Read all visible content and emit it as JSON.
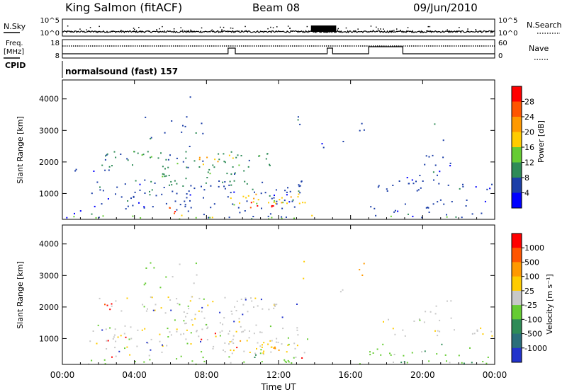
{
  "header": {
    "station": "King Salmon (fitACF)",
    "beam": "Beam 08",
    "date": "09/Jun/2010"
  },
  "left_labels": {
    "nsky": "N.Sky",
    "freq": "Freq.",
    "freq_unit": "[MHz]",
    "cpid": "CPID"
  },
  "right_labels": {
    "nsearch": "N.Search",
    "nave": "Nave"
  },
  "cpid_text": "normalsound (fast) 157",
  "chart_data": [
    {
      "type": "line",
      "name": "noise-panel",
      "left_ticks": [
        "10^5",
        "10^0"
      ],
      "right_ticks": [
        "10^5",
        "10^0"
      ]
    },
    {
      "type": "line",
      "name": "freq-nave-panel",
      "left_ticks": [
        18,
        8
      ],
      "right_ticks": [
        60,
        0
      ],
      "nave_steps": [
        {
          "x": [
            0.0,
            9.2
          ],
          "level": "low"
        },
        {
          "x": [
            9.2,
            9.6
          ],
          "level": "high"
        },
        {
          "x": [
            9.6,
            14.7
          ],
          "level": "low"
        },
        {
          "x": [
            14.7,
            15.0
          ],
          "level": "high"
        },
        {
          "x": [
            15.0,
            17.0
          ],
          "level": "low"
        },
        {
          "x": [
            17.0,
            18.9
          ],
          "level": "higher"
        },
        {
          "x": [
            18.9,
            24.0
          ],
          "level": "low"
        }
      ]
    },
    {
      "type": "heatmap",
      "name": "power",
      "xlim": [
        0,
        24
      ],
      "xticks": [
        "00:00",
        "04:00",
        "08:00",
        "12:00",
        "16:00",
        "20:00",
        "00:00"
      ],
      "xtick_values": [
        0,
        4,
        8,
        12,
        16,
        20,
        24
      ],
      "ylim": [
        180,
        4600
      ],
      "yticks": [
        1000,
        2000,
        3000,
        4000
      ],
      "ylabel": "Slant Range [km]",
      "colorbar_label": "Power [dB]",
      "colorbar_ticks": [
        4,
        8,
        12,
        16,
        20,
        24,
        28
      ],
      "colorbar_colors": [
        "#0000ff",
        "#1c3fa8",
        "#2e8b57",
        "#66cc33",
        "#ffcc00",
        "#ff9900",
        "#ff5500",
        "#ff0000"
      ],
      "regions": [
        {
          "t": [
            0.2,
            13.5
          ],
          "r": [
            250,
            500
          ],
          "level": 1,
          "density": 0.22
        },
        {
          "t": [
            1.5,
            13.6
          ],
          "r": [
            500,
            1450
          ],
          "level": 1,
          "density": 0.4
        },
        {
          "t": [
            5.5,
            10.5
          ],
          "r": [
            1200,
            1900
          ],
          "level": 2,
          "density": 0.45
        },
        {
          "t": [
            2.0,
            12.0
          ],
          "r": [
            1850,
            2350
          ],
          "level": 2,
          "density": 0.5
        },
        {
          "t": [
            0.5,
            3.0
          ],
          "r": [
            1650,
            1950
          ],
          "level": 1,
          "density": 0.3
        },
        {
          "t": [
            9.0,
            13.5
          ],
          "r": [
            600,
            1000
          ],
          "level": 4,
          "density": 0.65
        },
        {
          "t": [
            10.2,
            11.8
          ],
          "r": [
            550,
            800
          ],
          "level": 7,
          "density": 0.8
        },
        {
          "t": [
            5.8,
            6.8
          ],
          "r": [
            360,
            600
          ],
          "level": 6,
          "density": 0.7
        },
        {
          "t": [
            7.5,
            9.5
          ],
          "r": [
            1900,
            2250
          ],
          "level": 5,
          "density": 0.5
        },
        {
          "t": [
            4.5,
            7.8
          ],
          "r": [
            2500,
            3500
          ],
          "level": 1,
          "density": 0.18
        },
        {
          "t": [
            7.0,
            8.0
          ],
          "r": [
            3800,
            4200
          ],
          "level": 0,
          "density": 0.12
        },
        {
          "t": [
            14.3,
            15.6
          ],
          "r": [
            2300,
            2700
          ],
          "level": 1,
          "density": 0.28
        },
        {
          "t": [
            13.0,
            13.4
          ],
          "r": [
            2900,
            3600
          ],
          "level": 1,
          "density": 0.45
        },
        {
          "t": [
            16.4,
            16.8
          ],
          "r": [
            2950,
            3550
          ],
          "level": 1,
          "density": 0.6
        },
        {
          "t": [
            17.3,
            24.0
          ],
          "r": [
            1100,
            1350
          ],
          "level": 1,
          "density": 0.55
        },
        {
          "t": [
            17.3,
            21.0
          ],
          "r": [
            1400,
            1750
          ],
          "level": 1,
          "density": 0.3
        },
        {
          "t": [
            17.0,
            24.0
          ],
          "r": [
            250,
            850
          ],
          "level": 1,
          "density": 0.28
        },
        {
          "t": [
            19.5,
            22.0
          ],
          "r": [
            1600,
            2300
          ],
          "level": 1,
          "density": 0.22
        },
        {
          "t": [
            20.3,
            21.3
          ],
          "r": [
            2700,
            3300
          ],
          "level": 1,
          "density": 0.12
        },
        {
          "t": [
            0.2,
            24.0
          ],
          "r": [
            180,
            330
          ],
          "level": 3,
          "density": 0.3
        }
      ]
    },
    {
      "type": "heatmap",
      "name": "velocity",
      "xlim": [
        0,
        24
      ],
      "xticks": [
        "00:00",
        "04:00",
        "08:00",
        "12:00",
        "16:00",
        "20:00",
        "00:00"
      ],
      "xtick_values": [
        0,
        4,
        8,
        12,
        16,
        20,
        24
      ],
      "xlabel": "Time UT",
      "ylim": [
        180,
        4600
      ],
      "yticks": [
        1000,
        2000,
        3000,
        4000
      ],
      "ylabel": "Slant Range [km]",
      "colorbar_label": "Velocity [m s⁻¹]",
      "colorbar_ticks": [
        1000,
        500,
        100,
        25,
        -25,
        -100,
        -500,
        -1000
      ],
      "colorbar_colors": [
        "#2233cc",
        "#2a6e7a",
        "#2e8b57",
        "#66cc33",
        "#c8c8c8",
        "#ffcc00",
        "#ff9900",
        "#ff5500",
        "#ff0000"
      ],
      "regions": [
        {
          "t": [
            1.5,
            13.6
          ],
          "r": [
            500,
            1450
          ],
          "level": 4,
          "density": 0.4
        },
        {
          "t": [
            9.0,
            12.5
          ],
          "r": [
            600,
            1000
          ],
          "level": 5,
          "density": 0.55
        },
        {
          "t": [
            10.5,
            12.0
          ],
          "r": [
            650,
            950
          ],
          "level": 6,
          "density": 0.35
        },
        {
          "t": [
            2.0,
            12.0
          ],
          "r": [
            1850,
            2350
          ],
          "level": 4,
          "density": 0.45
        },
        {
          "t": [
            5.5,
            10.5
          ],
          "r": [
            1200,
            1900
          ],
          "level": 4,
          "density": 0.4
        },
        {
          "t": [
            0.2,
            13.5
          ],
          "r": [
            250,
            500
          ],
          "level": 3,
          "density": 0.22
        },
        {
          "t": [
            4.5,
            7.8
          ],
          "r": [
            2500,
            3500
          ],
          "level": 3,
          "density": 0.16
        },
        {
          "t": [
            13.0,
            13.4
          ],
          "r": [
            2900,
            3600
          ],
          "level": 5,
          "density": 0.35
        },
        {
          "t": [
            16.4,
            16.8
          ],
          "r": [
            2950,
            3550
          ],
          "level": 6,
          "density": 0.55
        },
        {
          "t": [
            14.3,
            15.6
          ],
          "r": [
            2300,
            2700
          ],
          "level": 4,
          "density": 0.2
        },
        {
          "t": [
            17.3,
            24.0
          ],
          "r": [
            1100,
            1350
          ],
          "level": 4,
          "density": 0.45
        },
        {
          "t": [
            17.3,
            21.0
          ],
          "r": [
            1400,
            1750
          ],
          "level": 4,
          "density": 0.25
        },
        {
          "t": [
            17.0,
            24.0
          ],
          "r": [
            250,
            850
          ],
          "level": 3,
          "density": 0.25
        },
        {
          "t": [
            19.5,
            22.0
          ],
          "r": [
            1600,
            2300
          ],
          "level": 4,
          "density": 0.18
        },
        {
          "t": [
            0.2,
            24.0
          ],
          "r": [
            180,
            330
          ],
          "level": 3,
          "density": 0.3
        },
        {
          "t": [
            2.0,
            14.0
          ],
          "r": [
            400,
            2400
          ],
          "level": 0,
          "density": 0.03
        },
        {
          "t": [
            2.0,
            14.0
          ],
          "r": [
            400,
            2400
          ],
          "level": 8,
          "density": 0.02
        }
      ]
    }
  ]
}
